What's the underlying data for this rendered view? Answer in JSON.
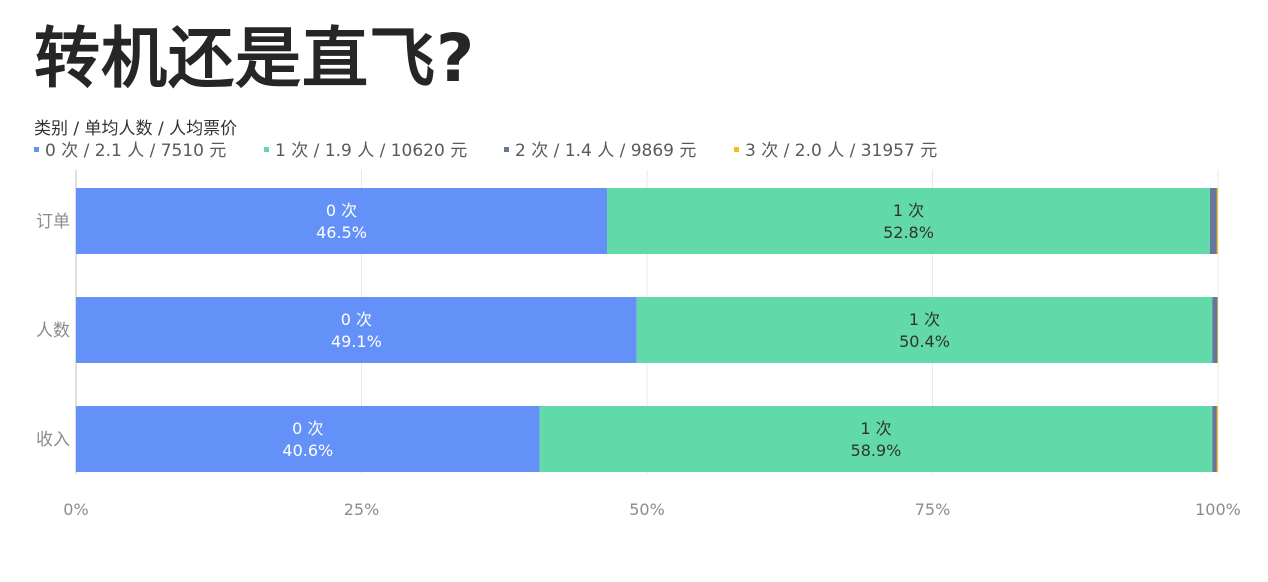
{
  "title": "转机还是直飞?",
  "chart_data": {
    "type": "bar",
    "orientation": "horizontal",
    "stacked": "percent",
    "legend_title": "类别 / 单均人数 / 人均票价",
    "legend_position": "top-left",
    "categories": [
      "订单",
      "人数",
      "收入"
    ],
    "series": [
      {
        "name": "0 次 / 2.1 人 / 7510 元",
        "short_name": "0 次",
        "color": "#6391f8",
        "label_color": "#ffffff",
        "values": [
          46.5,
          49.1,
          40.6
        ],
        "labels": [
          "46.5%",
          "49.1%",
          "40.6%"
        ]
      },
      {
        "name": "1 次 / 1.9 人 / 10620 元",
        "short_name": "1 次",
        "color": "#61d9a9",
        "label_color": "#333333",
        "values": [
          52.8,
          50.4,
          58.9
        ],
        "labels": [
          "52.8%",
          "50.4%",
          "58.9%"
        ]
      },
      {
        "name": "2 次 / 1.4 人 / 9869 元",
        "short_name": "2 次",
        "color": "#65779a",
        "values": [
          0.6,
          0.45,
          0.4
        ]
      },
      {
        "name": "3 次 / 2.0 人 / 31957 元",
        "short_name": "3 次",
        "color": "#f6bd16",
        "values": [
          0.1,
          0.05,
          0.1
        ]
      }
    ],
    "xlim": [
      0,
      100
    ],
    "x_ticks": [
      0,
      25,
      50,
      75,
      100
    ],
    "x_tick_labels": [
      "0%",
      "25%",
      "50%",
      "75%",
      "100%"
    ],
    "grid": true
  }
}
